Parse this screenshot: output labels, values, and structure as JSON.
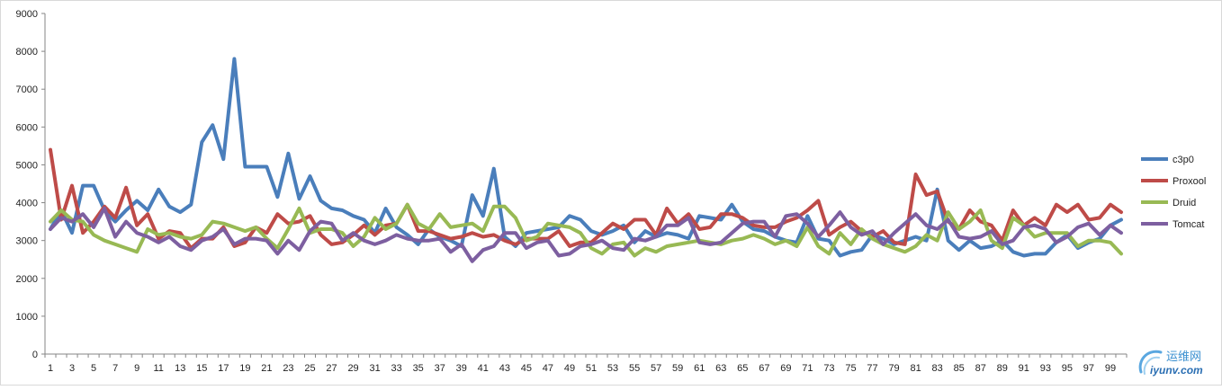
{
  "chart_data": {
    "type": "line",
    "title": "",
    "xlabel": "",
    "ylabel": "",
    "ylim": [
      0,
      9000
    ],
    "y_ticks": [
      "0",
      "1000",
      "2000",
      "3000",
      "4000",
      "5000",
      "6000",
      "7000",
      "8000",
      "9000"
    ],
    "x_ticks": [
      "1",
      "3",
      "5",
      "7",
      "9",
      "11",
      "13",
      "15",
      "17",
      "19",
      "21",
      "23",
      "25",
      "27",
      "29",
      "31",
      "33",
      "35",
      "37",
      "39",
      "41",
      "43",
      "45",
      "47",
      "49",
      "51",
      "53",
      "55",
      "57",
      "59",
      "61",
      "63",
      "65",
      "67",
      "69",
      "71",
      "73",
      "75",
      "77",
      "79",
      "81",
      "83",
      "85",
      "87",
      "89",
      "91",
      "93",
      "95",
      "97",
      "99"
    ],
    "x": [
      1,
      2,
      3,
      4,
      5,
      6,
      7,
      8,
      9,
      10,
      11,
      12,
      13,
      14,
      15,
      16,
      17,
      18,
      19,
      20,
      21,
      22,
      23,
      24,
      25,
      26,
      27,
      28,
      29,
      30,
      31,
      32,
      33,
      34,
      35,
      36,
      37,
      38,
      39,
      40,
      41,
      42,
      43,
      44,
      45,
      46,
      47,
      48,
      49,
      50,
      51,
      52,
      53,
      54,
      55,
      56,
      57,
      58,
      59,
      60,
      61,
      62,
      63,
      64,
      65,
      66,
      67,
      68,
      69,
      70,
      71,
      72,
      73,
      74,
      75,
      76,
      77,
      78,
      79,
      80,
      81,
      82,
      83,
      84,
      85,
      86,
      87,
      88,
      89,
      90,
      91,
      92,
      93,
      94,
      95,
      96,
      97,
      98,
      99,
      100
    ],
    "grid": false,
    "legend_position": "right",
    "series": [
      {
        "name": "c3p0",
        "color": "#4a7ebb",
        "values": [
          3300,
          3800,
          3200,
          4450,
          4450,
          3800,
          3500,
          3800,
          4050,
          3800,
          4350,
          3900,
          3750,
          3950,
          5600,
          6050,
          5150,
          7800,
          4950,
          4950,
          4950,
          4150,
          5300,
          4100,
          4700,
          4050,
          3850,
          3800,
          3650,
          3550,
          3200,
          3850,
          3350,
          3150,
          2900,
          3300,
          3100,
          3000,
          2850,
          4200,
          3650,
          4900,
          3100,
          2850,
          3200,
          3250,
          3300,
          3350,
          3650,
          3550,
          3250,
          3150,
          3250,
          3400,
          2950,
          3250,
          3100,
          3200,
          3150,
          3050,
          3650,
          3600,
          3550,
          3950,
          3500,
          3300,
          3250,
          3100,
          3000,
          2950,
          3650,
          3050,
          3000,
          2600,
          2700,
          2750,
          3150,
          3050,
          2900,
          3000,
          3100,
          3000,
          4350,
          3000,
          2750,
          3000,
          2800,
          2850,
          3000,
          2700,
          2600,
          2650,
          2650,
          2950,
          3150,
          2800,
          2950,
          3050,
          3400,
          3550
        ]
      },
      {
        "name": "Proxool",
        "color": "#be4b48",
        "values": [
          5400,
          3550,
          4450,
          3200,
          3500,
          3900,
          3600,
          4400,
          3400,
          3700,
          3050,
          3250,
          3200,
          2800,
          3050,
          3050,
          3350,
          2850,
          2950,
          3350,
          3200,
          3700,
          3450,
          3500,
          3650,
          3150,
          2900,
          2950,
          3150,
          3400,
          3150,
          3400,
          3450,
          3950,
          3250,
          3250,
          3150,
          3050,
          3100,
          3200,
          3100,
          3150,
          3000,
          2900,
          3050,
          3050,
          3050,
          3250,
          2850,
          2950,
          2950,
          3200,
          3450,
          3300,
          3550,
          3550,
          3150,
          3850,
          3450,
          3700,
          3300,
          3350,
          3700,
          3700,
          3600,
          3400,
          3350,
          3350,
          3500,
          3600,
          3800,
          4050,
          3150,
          3350,
          3500,
          3250,
          3100,
          3250,
          2950,
          2900,
          4750,
          4200,
          4300,
          3500,
          3300,
          3800,
          3500,
          3400,
          3000,
          3800,
          3400,
          3600,
          3400,
          3950,
          3750,
          3950,
          3550,
          3600,
          3950,
          3750
        ]
      },
      {
        "name": "Druid",
        "color": "#98b954",
        "values": [
          3500,
          3800,
          3550,
          3500,
          3150,
          3000,
          2900,
          2800,
          2700,
          3300,
          3150,
          3200,
          3100,
          3050,
          3150,
          3500,
          3450,
          3350,
          3250,
          3350,
          3050,
          2800,
          3300,
          3850,
          3200,
          3300,
          3300,
          3200,
          2850,
          3100,
          3600,
          3300,
          3450,
          3950,
          3450,
          3300,
          3700,
          3350,
          3400,
          3450,
          3250,
          3900,
          3900,
          3600,
          3000,
          3100,
          3450,
          3400,
          3350,
          3200,
          2800,
          2650,
          2900,
          2950,
          2600,
          2800,
          2700,
          2850,
          2900,
          2950,
          3000,
          2950,
          2900,
          3000,
          3050,
          3150,
          3050,
          2900,
          3000,
          2850,
          3350,
          2850,
          2650,
          3200,
          2900,
          3300,
          3050,
          2900,
          2800,
          2700,
          2850,
          3150,
          3000,
          3750,
          3300,
          3500,
          3800,
          3000,
          2800,
          3600,
          3400,
          3100,
          3200,
          3200,
          3200,
          2850,
          3000,
          3000,
          2950,
          2650
        ]
      },
      {
        "name": "Tomcat",
        "color": "#7d5fa0",
        "values": [
          3300,
          3600,
          3500,
          3700,
          3350,
          3850,
          3100,
          3500,
          3200,
          3100,
          2950,
          3100,
          2850,
          2750,
          3000,
          3100,
          3300,
          2900,
          3050,
          3050,
          3000,
          2650,
          3000,
          2750,
          3250,
          3500,
          3450,
          3000,
          3200,
          3000,
          2900,
          3000,
          3150,
          3050,
          3000,
          3000,
          3050,
          2700,
          2900,
          2450,
          2750,
          2850,
          3200,
          3200,
          2800,
          2950,
          3000,
          2600,
          2650,
          2850,
          2900,
          3000,
          2800,
          2750,
          3050,
          3000,
          3100,
          3400,
          3400,
          3600,
          2950,
          2900,
          2950,
          3200,
          3450,
          3500,
          3500,
          3100,
          3650,
          3700,
          3450,
          3100,
          3400,
          3750,
          3350,
          3150,
          3250,
          2900,
          3200,
          3450,
          3700,
          3400,
          3300,
          3550,
          3100,
          3050,
          3100,
          3250,
          2900,
          3000,
          3350,
          3400,
          3300,
          2950,
          3100,
          3350,
          3450,
          3150,
          3400,
          3200
        ]
      }
    ]
  },
  "watermark": {
    "text": "运维网",
    "url": "iyunv.com"
  }
}
